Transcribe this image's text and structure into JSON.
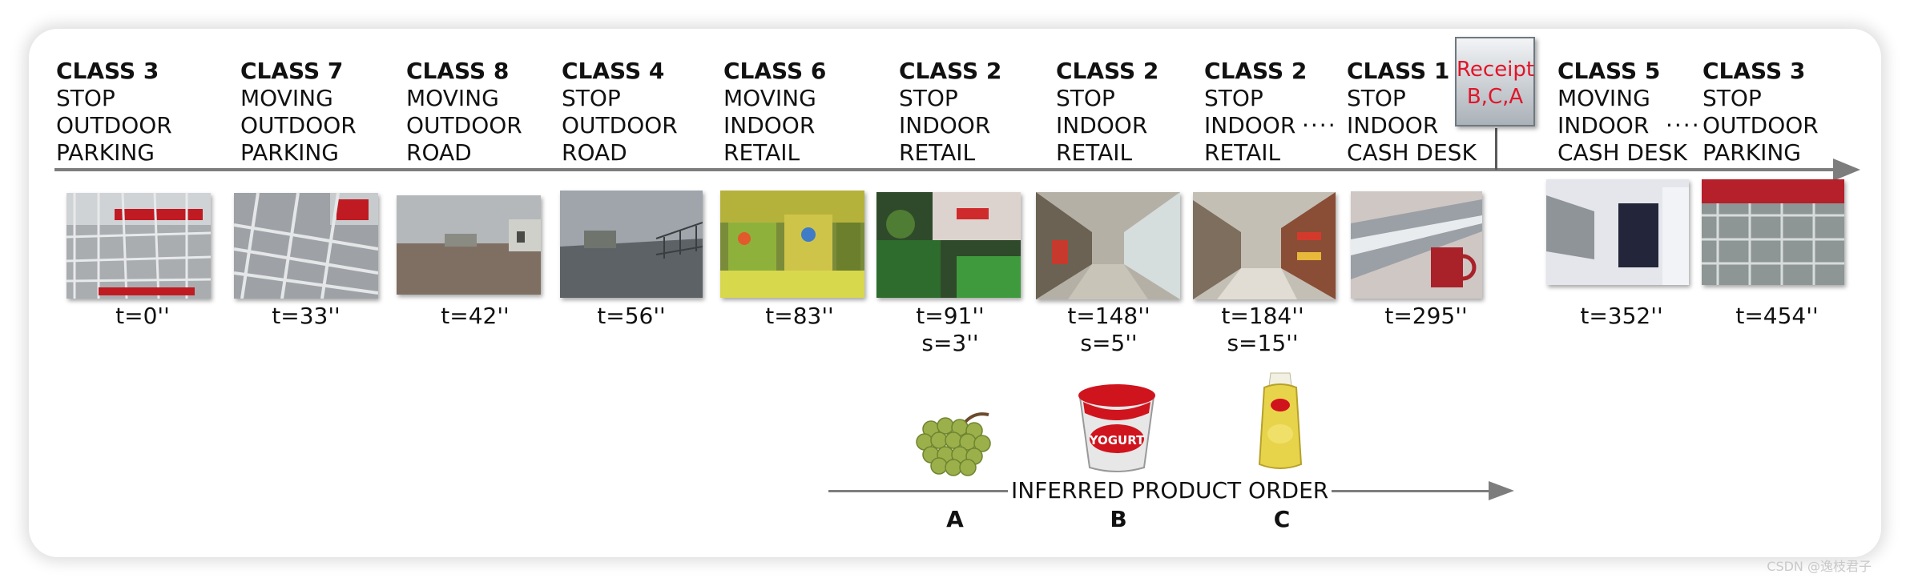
{
  "stages": [
    {
      "cls": "CLASS 3",
      "motion": "STOP",
      "place": "OUTDOOR",
      "area": "PARKING",
      "time": "t=0''",
      "sub": ""
    },
    {
      "cls": "CLASS 7",
      "motion": "MOVING",
      "place": "OUTDOOR",
      "area": "PARKING",
      "time": "t=33''",
      "sub": ""
    },
    {
      "cls": "CLASS 8",
      "motion": "MOVING",
      "place": "OUTDOOR",
      "area": "ROAD",
      "time": "t=42''",
      "sub": ""
    },
    {
      "cls": "CLASS 4",
      "motion": "STOP",
      "place": "OUTDOOR",
      "area": "ROAD",
      "time": "t=56''",
      "sub": ""
    },
    {
      "cls": "CLASS 6",
      "motion": "MOVING",
      "place": "INDOOR",
      "area": "RETAIL",
      "time": "t=83''",
      "sub": ""
    },
    {
      "cls": "CLASS 2",
      "motion": "STOP",
      "place": "INDOOR",
      "area": "RETAIL",
      "time": "t=91''",
      "sub": "s=3''"
    },
    {
      "cls": "CLASS 2",
      "motion": "STOP",
      "place": "INDOOR",
      "area": "RETAIL",
      "time": "t=148''",
      "sub": "s=5''"
    },
    {
      "cls": "CLASS 2",
      "motion": "STOP",
      "place": "INDOOR",
      "area": "RETAIL",
      "time": "t=184''",
      "sub": "s=15''"
    },
    {
      "cls": "CLASS 1",
      "motion": "STOP",
      "place": "INDOOR",
      "area": "CASH DESK",
      "time": "t=295''",
      "sub": ""
    },
    {
      "cls": "CLASS 5",
      "motion": "MOVING",
      "place": "INDOOR",
      "area": "CASH DESK",
      "time": "t=352''",
      "sub": ""
    },
    {
      "cls": "CLASS 3",
      "motion": "STOP",
      "place": "OUTDOOR",
      "area": "PARKING",
      "time": "t=454''",
      "sub": ""
    }
  ],
  "ellipsis": "····",
  "receipt": {
    "line1": "Receipt",
    "line2": "B,C,A",
    "color": "#e0152a"
  },
  "products": {
    "axis_label": "INFERRED PRODUCT ORDER",
    "letters": [
      "A",
      "B",
      "C"
    ],
    "yogurt_text": "YOGURT"
  },
  "watermark": "CSDN @逸枝君子"
}
